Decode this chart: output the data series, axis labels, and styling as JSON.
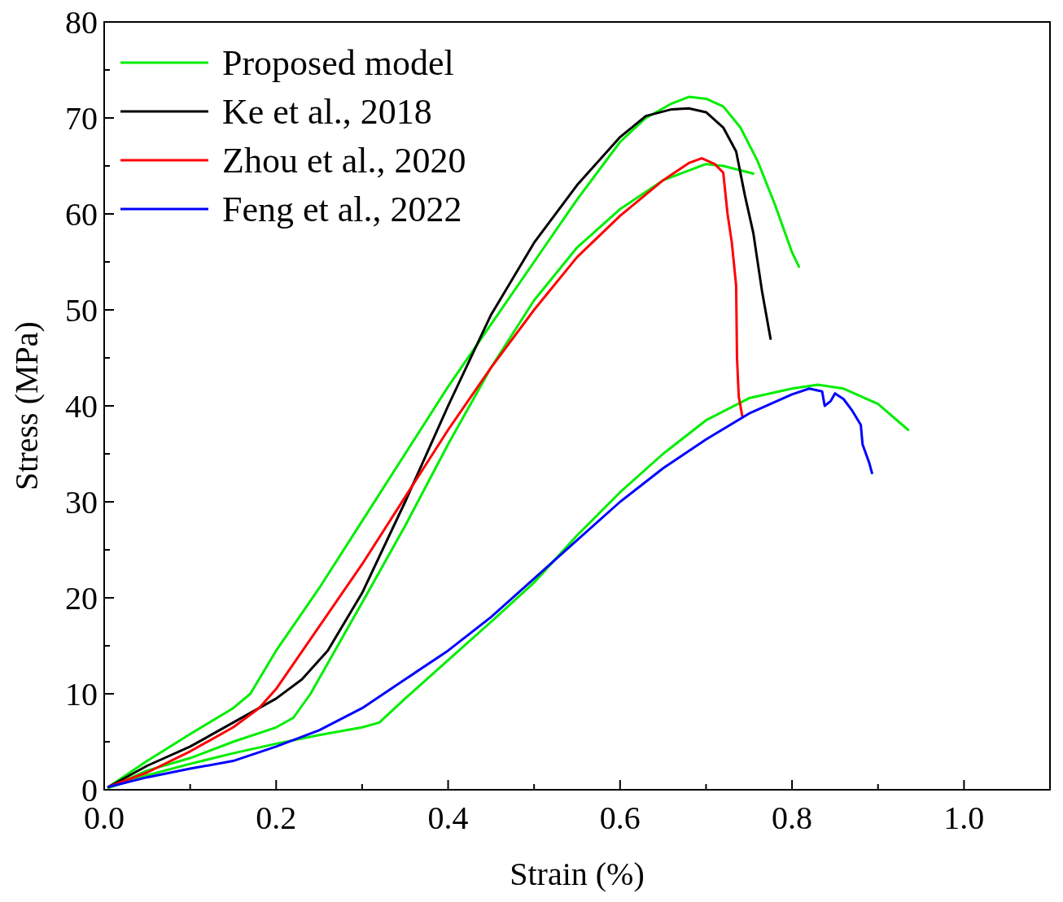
{
  "chart_data": {
    "type": "line",
    "xlabel": "Strain (%)",
    "ylabel": "Stress (MPa)",
    "xlim": [
      0,
      1.1
    ],
    "ylim": [
      0,
      80
    ],
    "xticks": [
      {
        "value": 0,
        "label": "0.0"
      },
      {
        "value": 0.1,
        "label": null
      },
      {
        "value": 0.2,
        "label": "0.2"
      },
      {
        "value": 0.3,
        "label": null
      },
      {
        "value": 0.4,
        "label": "0.4"
      },
      {
        "value": 0.5,
        "label": null
      },
      {
        "value": 0.6,
        "label": "0.6"
      },
      {
        "value": 0.7,
        "label": null
      },
      {
        "value": 0.8,
        "label": "0.8"
      },
      {
        "value": 0.9,
        "label": null
      },
      {
        "value": 1,
        "label": "1.0"
      }
    ],
    "yticks": [
      0,
      {
        "value": 5,
        "label": null
      },
      10,
      {
        "value": 15,
        "label": null
      },
      20,
      {
        "value": 25,
        "label": null
      },
      30,
      {
        "value": 35,
        "label": null
      },
      40,
      {
        "value": 45,
        "label": null
      },
      50,
      {
        "value": 55,
        "label": null
      },
      60,
      {
        "value": 65,
        "label": null
      },
      70,
      {
        "value": 75,
        "label": null
      },
      80
    ],
    "grid": false,
    "legend": "top left",
    "marker": "none",
    "line_style": "solid",
    "series": [
      {
        "name": "Proposed model",
        "color": "#00ee00",
        "x": [
          0.005,
          0.05,
          0.1,
          0.15,
          0.17,
          0.2,
          0.25,
          0.3,
          0.35,
          0.4,
          0.45,
          0.5,
          0.55,
          0.6,
          0.63,
          0.66,
          0.68,
          0.7,
          0.72,
          0.74,
          0.76,
          0.78,
          0.8,
          0.808
        ],
        "values": [
          0.3,
          3,
          5.8,
          8.5,
          10,
          14.5,
          21,
          28,
          35,
          42,
          48.5,
          55,
          61.5,
          67.5,
          70,
          71.5,
          72.2,
          72,
          71.2,
          69,
          65.5,
          61,
          56,
          54.5
        ]
      },
      {
        "color": "#00ee00",
        "x": [
          0.005,
          0.05,
          0.1,
          0.15,
          0.2,
          0.22,
          0.24,
          0.3,
          0.35,
          0.4,
          0.45,
          0.5,
          0.55,
          0.6,
          0.65,
          0.7,
          0.72,
          0.755
        ],
        "values": [
          0.2,
          2,
          3.3,
          5,
          6.5,
          7.5,
          10,
          19.5,
          27.5,
          36,
          44,
          51,
          56.5,
          60.5,
          63.5,
          65.2,
          65,
          64.2
        ]
      },
      {
        "color": "#00ee00",
        "x": [
          0.005,
          0.05,
          0.1,
          0.15,
          0.2,
          0.25,
          0.3,
          0.32,
          0.35,
          0.4,
          0.45,
          0.5,
          0.55,
          0.6,
          0.65,
          0.7,
          0.75,
          0.8,
          0.83,
          0.86,
          0.9,
          0.935
        ],
        "values": [
          0.2,
          1.5,
          2.7,
          3.8,
          4.8,
          5.7,
          6.5,
          7,
          9.5,
          13.5,
          17.5,
          21.6,
          26.5,
          31,
          35,
          38.5,
          40.8,
          41.8,
          42.2,
          41.8,
          40.2,
          37.5
        ]
      },
      {
        "name": "Ke et al., 2018",
        "color": "#000000",
        "x": [
          0.005,
          0.05,
          0.1,
          0.15,
          0.2,
          0.23,
          0.26,
          0.3,
          0.35,
          0.4,
          0.45,
          0.5,
          0.55,
          0.6,
          0.63,
          0.66,
          0.68,
          0.7,
          0.72,
          0.735,
          0.745,
          0.755,
          0.765,
          0.775
        ],
        "values": [
          0.3,
          2.5,
          4.5,
          7,
          9.5,
          11.5,
          14.5,
          20.5,
          30,
          40,
          49.5,
          57,
          63,
          68,
          70.2,
          70.9,
          71,
          70.6,
          69,
          66.5,
          62,
          58,
          52,
          47
        ]
      },
      {
        "name": "Zhou et al., 2020",
        "color": "#ff0000",
        "x": [
          0.005,
          0.05,
          0.1,
          0.15,
          0.18,
          0.2,
          0.25,
          0.3,
          0.35,
          0.4,
          0.45,
          0.5,
          0.55,
          0.6,
          0.65,
          0.68,
          0.695,
          0.71,
          0.72,
          0.725,
          0.73,
          0.735,
          0.736,
          0.738,
          0.742
        ],
        "values": [
          0.3,
          1.8,
          4,
          6.5,
          8.5,
          10.5,
          17,
          23.5,
          30.5,
          37.5,
          44,
          50,
          55.5,
          59.8,
          63.5,
          65.3,
          65.8,
          65.2,
          64.3,
          60,
          57,
          52.5,
          45,
          41,
          39
        ]
      },
      {
        "name": "Feng et al., 2022",
        "color": "#0000ff",
        "x": [
          0.005,
          0.05,
          0.1,
          0.15,
          0.2,
          0.25,
          0.3,
          0.35,
          0.4,
          0.45,
          0.5,
          0.55,
          0.6,
          0.65,
          0.7,
          0.75,
          0.8,
          0.82,
          0.835,
          0.838,
          0.845,
          0.85,
          0.86,
          0.87,
          0.88,
          0.882,
          0.89,
          0.893
        ],
        "values": [
          0.3,
          1.3,
          2.2,
          3,
          4.5,
          6.2,
          8.5,
          11.5,
          14.5,
          18,
          22,
          26,
          30,
          33.5,
          36.5,
          39.2,
          41.2,
          41.8,
          41.5,
          40,
          40.5,
          41.3,
          40.7,
          39.5,
          38,
          36,
          34,
          33
        ]
      }
    ]
  }
}
